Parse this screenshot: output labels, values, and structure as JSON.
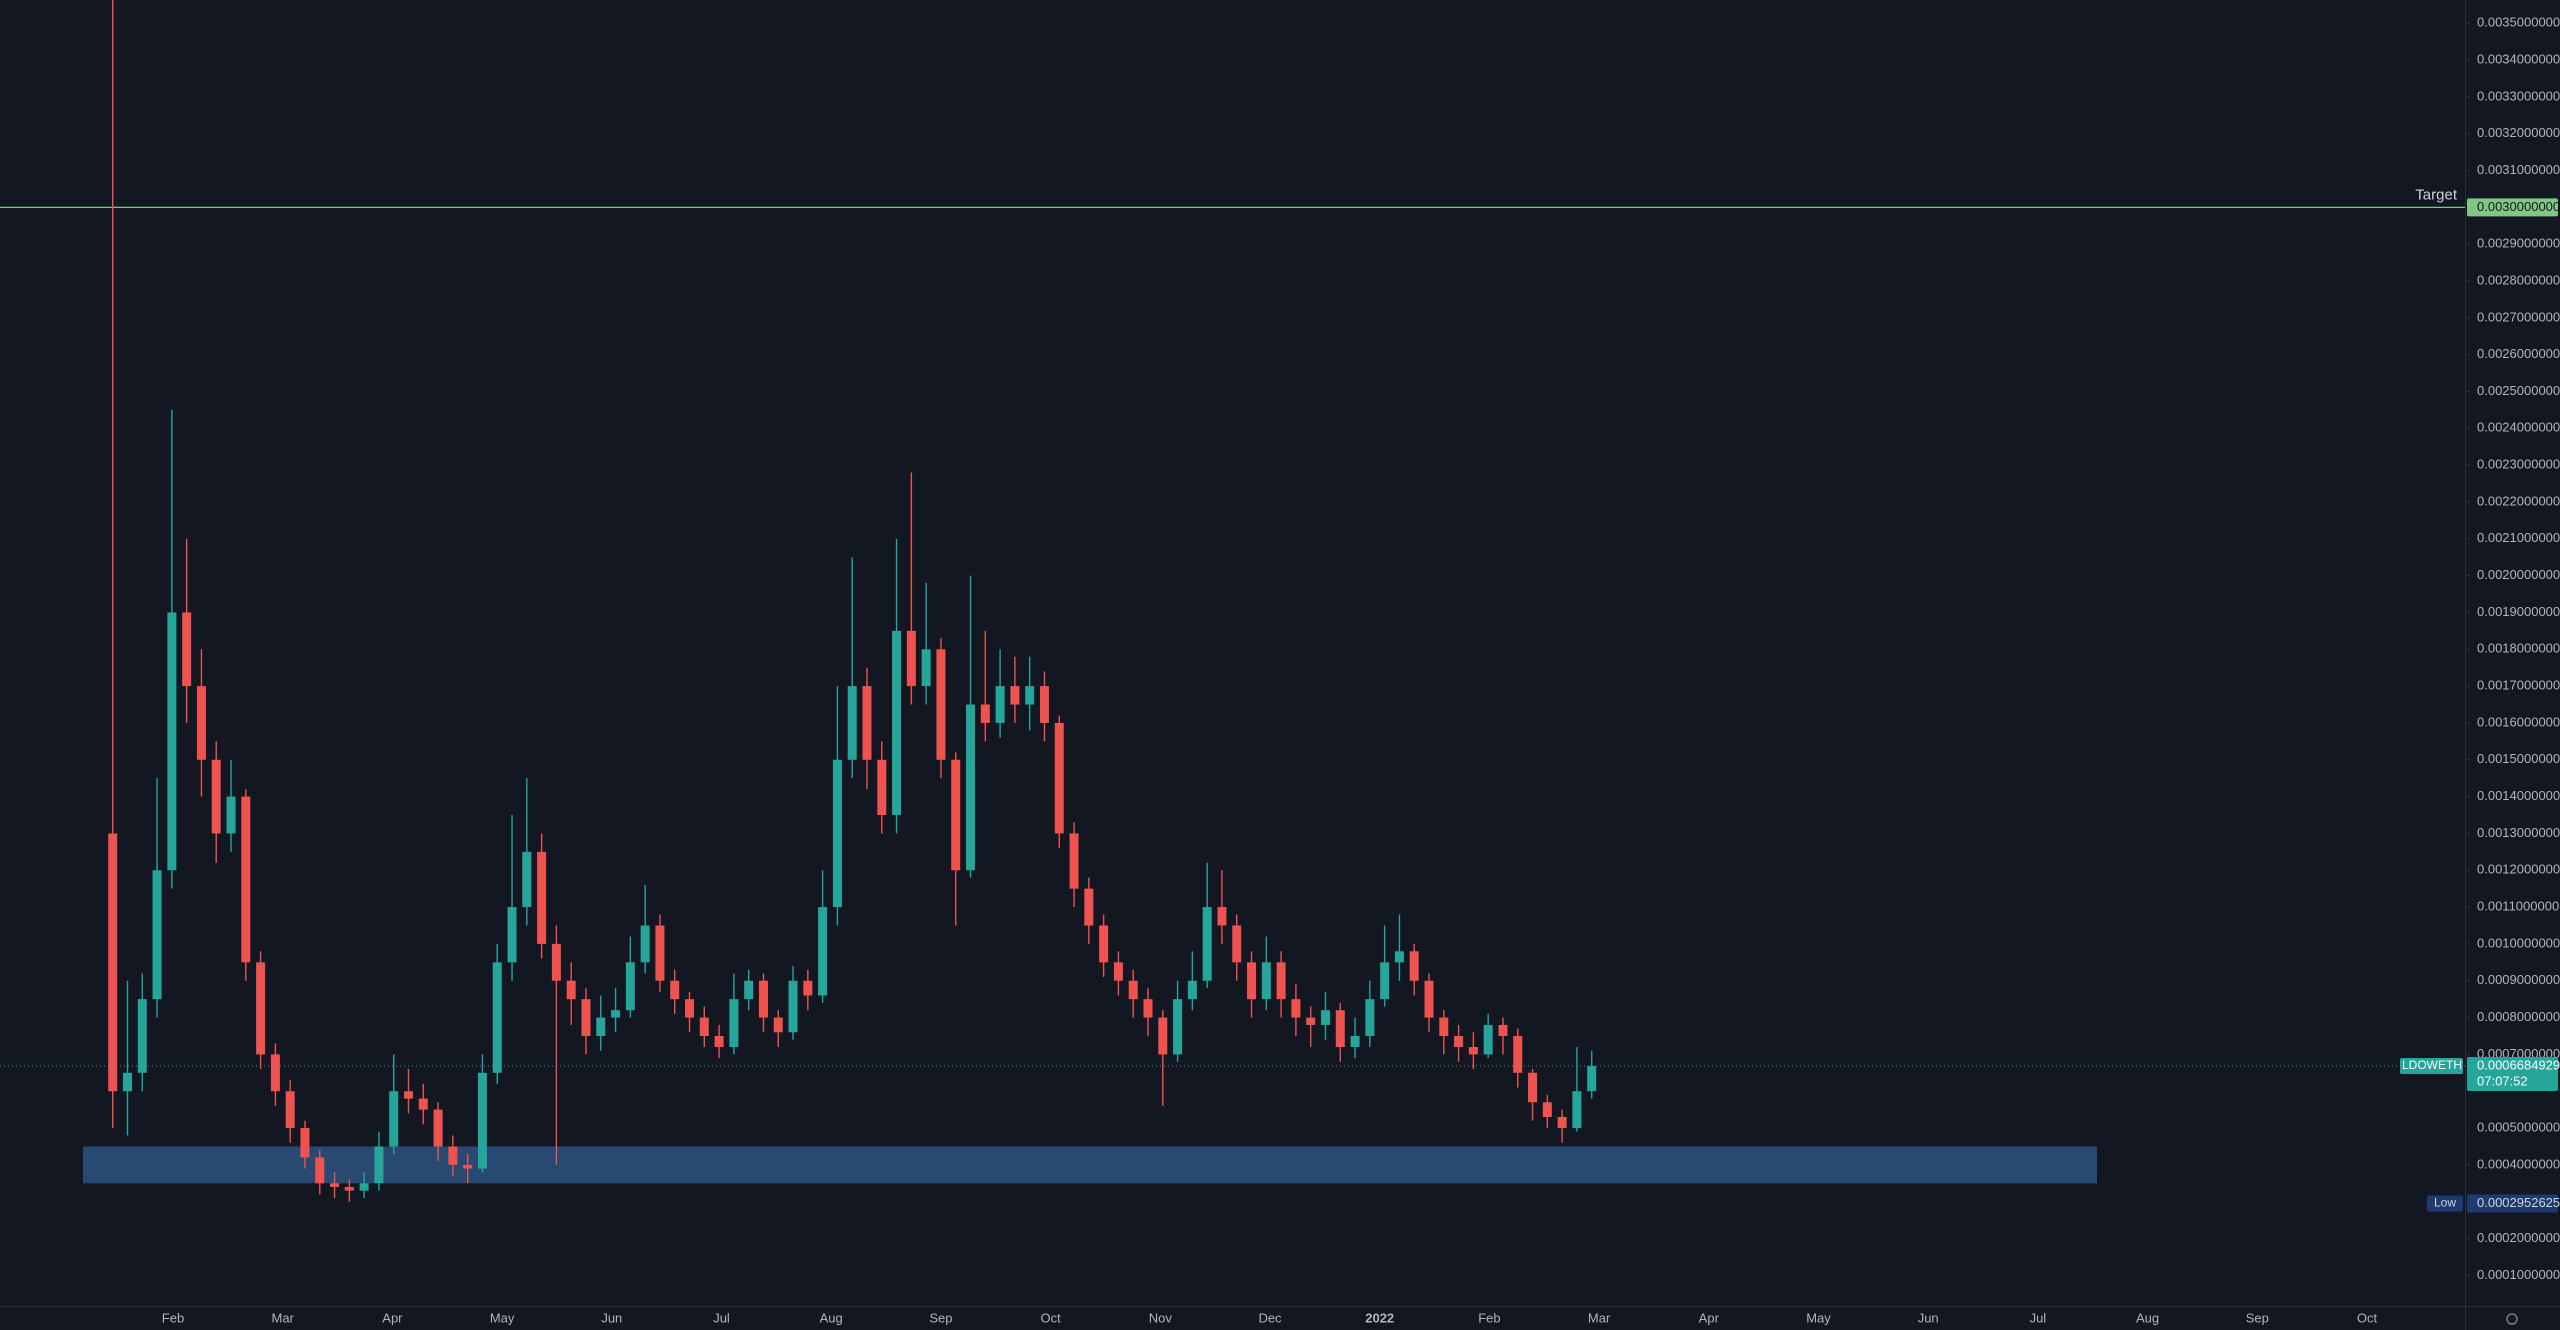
{
  "chart_data": {
    "type": "candlestick",
    "symbol": "LDOWETH",
    "countdown": "07:07:52",
    "last_price_label": "0.0006684929",
    "up_color": "#26a69a",
    "down_color": "#ef5350",
    "categories": [
      "Feb",
      "Mar",
      "Apr",
      "May",
      "Jun",
      "Jul",
      "Aug",
      "Sep",
      "Oct",
      "Nov",
      "Dec",
      "2022",
      "Feb",
      "Mar",
      "Apr",
      "May",
      "Jun",
      "Jul",
      "Aug",
      "Sep",
      "Oct"
    ],
    "series": {
      "open": [
        0.0013,
        0.0006,
        0.00065,
        0.00085,
        0.0012,
        0.0019,
        0.0017,
        0.0015,
        0.0013,
        0.0014,
        0.00095,
        0.0007,
        0.0006,
        0.0005,
        0.00042,
        0.00035,
        0.00034,
        0.00033,
        0.00035,
        0.00045,
        0.0006,
        0.00058,
        0.00055,
        0.00045,
        0.0004,
        0.00039,
        0.00065,
        0.00095,
        0.0011,
        0.00125,
        0.001,
        0.0009,
        0.00085,
        0.00075,
        0.0008,
        0.00082,
        0.00095,
        0.00105,
        0.0009,
        0.00085,
        0.0008,
        0.00075,
        0.00072,
        0.00085,
        0.0009,
        0.0008,
        0.00076,
        0.0009,
        0.00086,
        0.0011,
        0.0015,
        0.0017,
        0.0015,
        0.00135,
        0.00185,
        0.0017,
        0.0018,
        0.0015,
        0.0012,
        0.00165,
        0.0016,
        0.0017,
        0.00165,
        0.0017,
        0.0016,
        0.0013,
        0.00115,
        0.00105,
        0.00095,
        0.0009,
        0.00085,
        0.0008,
        0.0007,
        0.00085,
        0.0009,
        0.0011,
        0.00105,
        0.00095,
        0.00085,
        0.00095,
        0.00085,
        0.0008,
        0.00078,
        0.00082,
        0.00072,
        0.00075,
        0.00085,
        0.00095,
        0.00098,
        0.0009,
        0.0008,
        0.00075,
        0.00072,
        0.0007,
        0.00078,
        0.00075,
        0.00065,
        0.00057,
        0.00053,
        0.0005,
        0.0006
      ],
      "high": [
        0.0036,
        0.0009,
        0.00092,
        0.00145,
        0.00245,
        0.0021,
        0.0018,
        0.00155,
        0.0015,
        0.00142,
        0.00098,
        0.00073,
        0.00063,
        0.00052,
        0.00044,
        0.00038,
        0.00036,
        0.00038,
        0.00049,
        0.0007,
        0.00066,
        0.00062,
        0.00057,
        0.00048,
        0.00043,
        0.0007,
        0.001,
        0.00135,
        0.00145,
        0.0013,
        0.00105,
        0.00095,
        0.00088,
        0.00086,
        0.00088,
        0.00102,
        0.00116,
        0.00108,
        0.00093,
        0.00087,
        0.00083,
        0.00078,
        0.00092,
        0.00093,
        0.00092,
        0.00082,
        0.00094,
        0.00093,
        0.0012,
        0.0017,
        0.00205,
        0.00175,
        0.00155,
        0.0021,
        0.00228,
        0.00198,
        0.00183,
        0.00152,
        0.002,
        0.00185,
        0.0018,
        0.00178,
        0.00178,
        0.00174,
        0.00162,
        0.00133,
        0.00118,
        0.00108,
        0.00098,
        0.00093,
        0.00088,
        0.00082,
        0.0009,
        0.00098,
        0.00122,
        0.0012,
        0.00108,
        0.00098,
        0.00102,
        0.00098,
        0.00089,
        0.00083,
        0.00087,
        0.00084,
        0.0008,
        0.0009,
        0.00105,
        0.00108,
        0.001,
        0.00092,
        0.00082,
        0.00078,
        0.00076,
        0.00081,
        0.0008,
        0.00077,
        0.00066,
        0.00059,
        0.00055,
        0.00072,
        0.00071
      ],
      "low": [
        0.0005,
        0.00048,
        0.0006,
        0.0008,
        0.00115,
        0.0016,
        0.0014,
        0.00122,
        0.00125,
        0.0009,
        0.00066,
        0.00056,
        0.00046,
        0.00039,
        0.00032,
        0.00031,
        0.0003,
        0.00031,
        0.00033,
        0.00043,
        0.00054,
        0.00051,
        0.00041,
        0.00037,
        0.00035,
        0.00038,
        0.00062,
        0.0009,
        0.00105,
        0.00096,
        0.0004,
        0.00078,
        0.0007,
        0.00071,
        0.00076,
        0.0008,
        0.00092,
        0.00087,
        0.00081,
        0.00076,
        0.00072,
        0.00069,
        0.0007,
        0.00082,
        0.00076,
        0.00072,
        0.00074,
        0.00082,
        0.00084,
        0.00105,
        0.00145,
        0.00142,
        0.0013,
        0.0013,
        0.00165,
        0.00165,
        0.00145,
        0.00105,
        0.00118,
        0.00155,
        0.00156,
        0.0016,
        0.00158,
        0.00155,
        0.00126,
        0.0011,
        0.001,
        0.00091,
        0.00086,
        0.0008,
        0.00075,
        0.00056,
        0.00068,
        0.00082,
        0.00088,
        0.001,
        0.0009,
        0.0008,
        0.00082,
        0.0008,
        0.00075,
        0.00072,
        0.00074,
        0.00068,
        0.00069,
        0.00072,
        0.00083,
        0.0009,
        0.00086,
        0.00076,
        0.0007,
        0.00068,
        0.00066,
        0.00069,
        0.0007,
        0.00061,
        0.00052,
        0.0005,
        0.00046,
        0.00049,
        0.00058
      ],
      "close": [
        0.0006,
        0.00065,
        0.00085,
        0.0012,
        0.0019,
        0.0017,
        0.0015,
        0.0013,
        0.0014,
        0.00095,
        0.0007,
        0.0006,
        0.0005,
        0.00042,
        0.00035,
        0.00034,
        0.00033,
        0.00035,
        0.00045,
        0.0006,
        0.00058,
        0.00055,
        0.00045,
        0.0004,
        0.00039,
        0.00065,
        0.00095,
        0.0011,
        0.00125,
        0.001,
        0.0009,
        0.00085,
        0.00075,
        0.0008,
        0.00082,
        0.00095,
        0.00105,
        0.0009,
        0.00085,
        0.0008,
        0.00075,
        0.00072,
        0.00085,
        0.0009,
        0.0008,
        0.00076,
        0.0009,
        0.00086,
        0.0011,
        0.0015,
        0.0017,
        0.0015,
        0.00135,
        0.00185,
        0.0017,
        0.0018,
        0.0015,
        0.0012,
        0.00165,
        0.0016,
        0.0017,
        0.00165,
        0.0017,
        0.0016,
        0.0013,
        0.00115,
        0.00105,
        0.00095,
        0.0009,
        0.00085,
        0.0008,
        0.0007,
        0.00085,
        0.0009,
        0.0011,
        0.00105,
        0.00095,
        0.00085,
        0.00095,
        0.00085,
        0.0008,
        0.00078,
        0.00082,
        0.00072,
        0.00075,
        0.00085,
        0.00095,
        0.00098,
        0.0009,
        0.0008,
        0.00075,
        0.00072,
        0.0007,
        0.00078,
        0.00075,
        0.00065,
        0.00057,
        0.00053,
        0.0005,
        0.0006,
        0.0006684929
      ]
    },
    "ylim": [
      1.68e-05,
      0.003563
    ],
    "yticks": [
      {
        "value": 0.0035,
        "label": "0.0035000000"
      },
      {
        "value": 0.0034,
        "label": "0.0034000000"
      },
      {
        "value": 0.0033,
        "label": "0.0033000000"
      },
      {
        "value": 0.0032,
        "label": "0.0032000000"
      },
      {
        "value": 0.0031,
        "label": "0.0031000000"
      },
      {
        "value": 0.0029,
        "label": "0.0029000000"
      },
      {
        "value": 0.0028,
        "label": "0.0028000000"
      },
      {
        "value": 0.0027,
        "label": "0.0027000000"
      },
      {
        "value": 0.0026,
        "label": "0.0026000000"
      },
      {
        "value": 0.0025,
        "label": "0.0025000000"
      },
      {
        "value": 0.0024,
        "label": "0.0024000000"
      },
      {
        "value": 0.0023,
        "label": "0.0023000000"
      },
      {
        "value": 0.0022,
        "label": "0.0022000000"
      },
      {
        "value": 0.0021,
        "label": "0.0021000000"
      },
      {
        "value": 0.002,
        "label": "0.0020000000"
      },
      {
        "value": 0.0019,
        "label": "0.0019000000"
      },
      {
        "value": 0.0018,
        "label": "0.0018000000"
      },
      {
        "value": 0.0017,
        "label": "0.0017000000"
      },
      {
        "value": 0.0016,
        "label": "0.0016000000"
      },
      {
        "value": 0.0015,
        "label": "0.0015000000"
      },
      {
        "value": 0.0014,
        "label": "0.0014000000"
      },
      {
        "value": 0.0013,
        "label": "0.0013000000"
      },
      {
        "value": 0.0012,
        "label": "0.0012000000"
      },
      {
        "value": 0.0011,
        "label": "0.0011000000"
      },
      {
        "value": 0.001,
        "label": "0.0010000000"
      },
      {
        "value": 0.0009,
        "label": "0.0009000000"
      },
      {
        "value": 0.0008,
        "label": "0.0008000000"
      },
      {
        "value": 0.0007,
        "label": "0.0007000000"
      },
      {
        "value": 0.0005,
        "label": "0.0005000000"
      },
      {
        "value": 0.0004,
        "label": "0.0004000000"
      },
      {
        "value": 0.0002,
        "label": "0.0002000000"
      },
      {
        "value": 0.0001,
        "label": "0.0001000000"
      }
    ],
    "target": {
      "label": "Target",
      "value": 0.003,
      "value_label": "0.0030000000",
      "color": "#81c784"
    },
    "low": {
      "label": "Low",
      "value": 0.0002952625,
      "value_label": "0.0002952625",
      "color": "#1e3a6e"
    },
    "zone": {
      "top": 0.00045,
      "bottom": 0.00035,
      "color": "#2b5280"
    }
  }
}
